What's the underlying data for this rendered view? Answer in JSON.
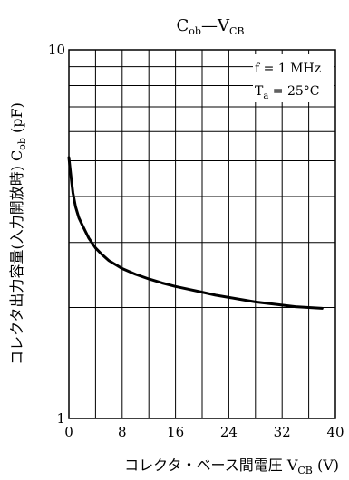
{
  "chart_data": {
    "type": "line",
    "title": {
      "main": "C",
      "main_sub": "ob",
      "dash": "—",
      "second": "V",
      "second_sub": "CB"
    },
    "xlabel": {
      "text": "コレクタ・ベース間電圧 ",
      "symbol": "V",
      "sub": "CB",
      "unit": " (V)"
    },
    "ylabel": {
      "text": "コレクタ出力容量(入力開放時) ",
      "symbol": "C",
      "sub": "ob",
      "unit": " (pF)"
    },
    "xlim": [
      0,
      40
    ],
    "ylim": [
      1,
      10
    ],
    "yscale": "log",
    "grid": true,
    "x_ticks": [
      "0",
      "8",
      "16",
      "24",
      "32",
      "40"
    ],
    "y_ticks": [
      "1",
      "10"
    ],
    "conditions": {
      "freq": "f = 1 MHz",
      "temp_symbol": "T",
      "temp_sub": "a",
      "temp_value": " = 25°C"
    },
    "series": [
      {
        "x": [
          0,
          0.3,
          0.6,
          1,
          1.5,
          2,
          3,
          4,
          5,
          6,
          8,
          10,
          12,
          14,
          16,
          18,
          20,
          22,
          24,
          26,
          28,
          30,
          32,
          34,
          36,
          38
        ],
        "y": [
          5.1,
          4.55,
          4.1,
          3.75,
          3.5,
          3.35,
          3.08,
          2.9,
          2.78,
          2.68,
          2.55,
          2.46,
          2.39,
          2.33,
          2.28,
          2.24,
          2.2,
          2.16,
          2.13,
          2.1,
          2.07,
          2.05,
          2.03,
          2.01,
          2.0,
          1.99
        ]
      }
    ]
  }
}
